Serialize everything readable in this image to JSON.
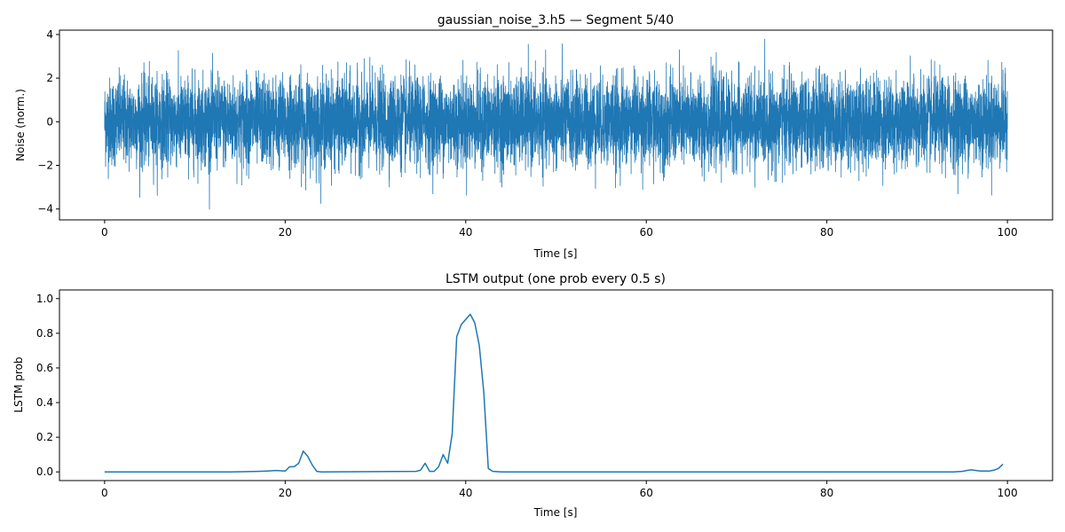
{
  "chart_data": [
    {
      "type": "line",
      "title": "gaussian_noise_3.h5 — Segment 5/40",
      "xlabel": "Time [s]",
      "ylabel": "Noise (norm.)",
      "xlim": [
        -5,
        105
      ],
      "ylim": [
        -4.5,
        4.2
      ],
      "xticks": [
        0,
        20,
        40,
        60,
        80,
        100
      ],
      "xtick_labels": [
        "0",
        "20",
        "40",
        "60",
        "80",
        "100"
      ],
      "yticks": [
        -4,
        -2,
        0,
        2,
        4
      ],
      "ytick_labels": [
        "−4",
        "−2",
        "0",
        "2",
        "4"
      ],
      "grid": false,
      "color": "#1f77b4",
      "series": [
        {
          "x_range": [
            0,
            100
          ],
          "distribution": "gaussian",
          "mean": 0.0,
          "std": 1.0,
          "approx_min": -4.1,
          "approx_max": 3.8
        }
      ]
    },
    {
      "type": "line",
      "title": "LSTM output (one prob every 0.5 s)",
      "xlabel": "Time [s]",
      "ylabel": "LSTM prob",
      "xlim": [
        -5,
        105
      ],
      "ylim": [
        -0.05,
        1.05
      ],
      "xticks": [
        0,
        20,
        40,
        60,
        80,
        100
      ],
      "xtick_labels": [
        "0",
        "20",
        "40",
        "60",
        "80",
        "100"
      ],
      "yticks": [
        0.0,
        0.2,
        0.4,
        0.6,
        0.8,
        1.0
      ],
      "ytick_labels": [
        "0.0",
        "0.2",
        "0.4",
        "0.6",
        "0.8",
        "1.0"
      ],
      "grid": false,
      "color": "#1f77b4",
      "series": [
        {
          "x": [
            0,
            14,
            17,
            18,
            19,
            20,
            20.5,
            21,
            21.5,
            22,
            22.5,
            23,
            23.5,
            24,
            34.5,
            35,
            35.5,
            36,
            36.5,
            37,
            37.5,
            38,
            38.5,
            39,
            39.5,
            40,
            40.5,
            41,
            41.5,
            42,
            42.5,
            43,
            44,
            94,
            95,
            95.5,
            96,
            96.5,
            97,
            98,
            98.5,
            99,
            99.5
          ],
          "y": [
            0.0,
            0.0,
            0.003,
            0.005,
            0.008,
            0.005,
            0.03,
            0.03,
            0.05,
            0.12,
            0.09,
            0.04,
            0.003,
            0.0,
            0.003,
            0.01,
            0.05,
            0.003,
            0.003,
            0.03,
            0.1,
            0.05,
            0.22,
            0.78,
            0.85,
            0.88,
            0.91,
            0.86,
            0.73,
            0.46,
            0.02,
            0.003,
            0.0,
            0.0,
            0.003,
            0.008,
            0.012,
            0.008,
            0.005,
            0.005,
            0.01,
            0.02,
            0.045
          ]
        }
      ]
    }
  ]
}
